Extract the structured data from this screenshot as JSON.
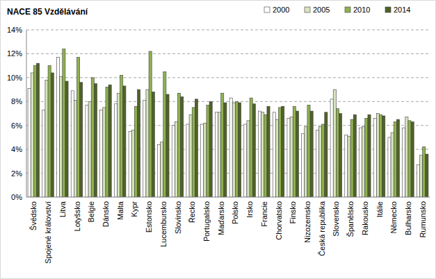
{
  "chart_data": {
    "type": "bar",
    "title": "NACE 85 Vzdělávání",
    "categories": [
      "Švédsko",
      "Spojené království",
      "Litva",
      "Lotyšsko",
      "Belgie",
      "Dánsko",
      "Malta",
      "Kypr",
      "Estonsko",
      "Lucembursko",
      "Slovinsko",
      "Řecko",
      "Portugalsko",
      "Maďarsko",
      "Polsko",
      "Irsko",
      "Francie",
      "Chorvatsko",
      "Finsko",
      "Nizozemsko",
      "Česká republika",
      "Slovensko",
      "Španělsko",
      "Rakousko",
      "Itálie",
      "Německo",
      "Bulharsko",
      "Rumunsko"
    ],
    "series": [
      {
        "name": "2000",
        "color": "#ffffff",
        "values": [
          9.1,
          7.3,
          11.7,
          8.9,
          7.7,
          7.3,
          7.8,
          5.5,
          8.1,
          4.4,
          6.0,
          6.1,
          6.1,
          7.1,
          8.3,
          6.1,
          7.2,
          7.1,
          6.6,
          5.3,
          5.6,
          8.2,
          5.2,
          5.8,
          6.6,
          5.0,
          5.8,
          2.7
        ]
      },
      {
        "name": "2005",
        "color": "#d7e4bd",
        "values": [
          10.4,
          9.8,
          10.1,
          8.1,
          8.0,
          7.5,
          8.7,
          5.6,
          9.0,
          4.6,
          6.3,
          6.9,
          6.2,
          7.1,
          7.9,
          6.4,
          7.1,
          6.5,
          6.7,
          5.9,
          5.9,
          9.0,
          5.1,
          5.9,
          7.0,
          5.4,
          6.7,
          3.5
        ]
      },
      {
        "name": "2010",
        "color": "#8fb24e",
        "values": [
          11.0,
          11.0,
          12.4,
          11.7,
          10.0,
          9.2,
          10.2,
          7.6,
          12.2,
          10.5,
          8.7,
          7.5,
          7.7,
          8.7,
          8.0,
          8.3,
          6.9,
          7.5,
          7.6,
          7.7,
          6.1,
          7.4,
          6.5,
          6.6,
          6.9,
          6.3,
          6.4,
          4.2
        ]
      },
      {
        "name": "2014",
        "color": "#4f6228",
        "values": [
          11.2,
          10.4,
          9.7,
          9.6,
          9.5,
          9.4,
          9.3,
          9.0,
          8.8,
          8.6,
          8.4,
          8.2,
          8.0,
          7.9,
          7.9,
          7.8,
          7.6,
          7.6,
          7.2,
          7.2,
          7.1,
          7.0,
          6.9,
          6.9,
          6.8,
          6.5,
          6.3,
          3.6
        ]
      }
    ],
    "ylim": [
      0,
      14
    ],
    "yticks": [
      {
        "value": 0,
        "label": "0%"
      },
      {
        "value": 2,
        "label": "2%"
      },
      {
        "value": 4,
        "label": "4%"
      },
      {
        "value": 6,
        "label": "6%"
      },
      {
        "value": 8,
        "label": "8%"
      },
      {
        "value": 10,
        "label": "10%"
      },
      {
        "value": 12,
        "label": "12%"
      },
      {
        "value": 14,
        "label": "14%"
      }
    ],
    "grid": true,
    "legend": "top-right"
  }
}
